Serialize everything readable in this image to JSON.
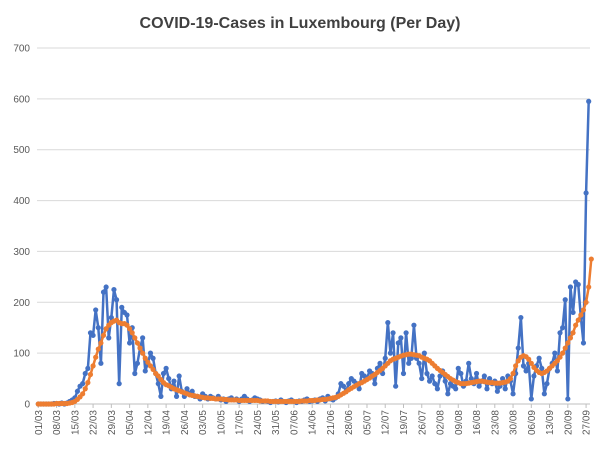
{
  "chart_data": {
    "type": "line",
    "title": "COVID-19-Cases in Luxembourg (Per Day)",
    "xlabel": "",
    "ylabel": "",
    "ylim": [
      0,
      700
    ],
    "yticks": [
      0,
      100,
      200,
      300,
      400,
      500,
      600,
      700
    ],
    "grid": true,
    "x_tick_labels": [
      "01/03",
      "08/03",
      "15/03",
      "22/03",
      "29/03",
      "05/04",
      "12/04",
      "19/04",
      "26/04",
      "03/05",
      "10/05",
      "17/05",
      "24/05",
      "31/05",
      "07/06",
      "14/06",
      "21/06",
      "28/06",
      "05/07",
      "12/07",
      "19/07",
      "26/07",
      "02/08",
      "09/08",
      "16/08",
      "23/08",
      "30/08",
      "06/09",
      "13/09",
      "20/09",
      "27/09",
      "04/10",
      "11/10",
      "18/10"
    ],
    "x_start": "01/03",
    "x_end": "23/10",
    "series": [
      {
        "color": "#4472c4",
        "marker": "circle",
        "values": [
          0,
          0,
          0,
          0,
          0,
          0,
          1,
          1,
          0,
          2,
          0,
          2,
          5,
          8,
          12,
          25,
          35,
          40,
          60,
          70,
          140,
          135,
          185,
          150,
          80,
          220,
          230,
          130,
          170,
          225,
          205,
          40,
          190,
          180,
          175,
          120,
          150,
          60,
          80,
          110,
          130,
          65,
          80,
          100,
          90,
          60,
          40,
          15,
          60,
          70,
          50,
          30,
          45,
          15,
          55,
          25,
          15,
          30,
          20,
          25,
          15,
          15,
          10,
          20,
          15,
          10,
          15,
          12,
          10,
          15,
          8,
          10,
          5,
          10,
          12,
          8,
          10,
          5,
          10,
          15,
          10,
          5,
          8,
          12,
          10,
          8,
          5,
          6,
          5,
          3,
          5,
          6,
          4,
          8,
          5,
          3,
          6,
          8,
          5,
          3,
          6,
          5,
          8,
          10,
          5,
          6,
          8,
          5,
          10,
          12,
          6,
          15,
          10,
          8,
          12,
          20,
          40,
          35,
          25,
          40,
          50,
          45,
          40,
          30,
          60,
          55,
          50,
          65,
          60,
          40,
          70,
          80,
          60,
          90,
          160,
          100,
          140,
          35,
          120,
          130,
          60,
          140,
          80,
          90,
          155,
          90,
          80,
          50,
          100,
          60,
          45,
          55,
          40,
          30,
          55,
          65,
          45,
          20,
          40,
          35,
          30,
          70,
          60,
          35,
          45,
          80,
          50,
          40,
          60,
          35,
          45,
          55,
          30,
          50,
          40,
          45,
          25,
          35,
          50,
          30,
          55,
          45,
          20,
          60,
          110,
          170,
          75,
          65,
          80,
          10,
          55,
          75,
          90,
          70,
          20,
          40,
          70,
          80,
          100,
          65,
          140,
          150,
          205,
          10,
          230,
          180,
          240,
          235,
          170,
          120,
          415,
          595
        ]
      },
      {
        "color": "#ed7d31",
        "marker": "circle",
        "values": [
          0,
          0,
          0,
          0,
          0,
          0,
          0,
          1,
          1,
          1,
          1,
          1,
          2,
          3,
          5,
          9,
          14,
          20,
          30,
          42,
          58,
          75,
          92,
          108,
          120,
          135,
          148,
          155,
          160,
          163,
          165,
          160,
          158,
          158,
          155,
          148,
          140,
          130,
          120,
          110,
          100,
          90,
          82,
          75,
          68,
          60,
          55,
          48,
          42,
          38,
          36,
          33,
          30,
          28,
          26,
          24,
          22,
          20,
          18,
          17,
          16,
          15,
          14,
          13,
          12,
          12,
          11,
          11,
          10,
          10,
          10,
          9,
          9,
          8,
          8,
          8,
          8,
          7,
          7,
          7,
          7,
          7,
          7,
          7,
          7,
          6,
          6,
          6,
          6,
          5,
          5,
          5,
          5,
          5,
          5,
          5,
          5,
          5,
          5,
          5,
          5,
          6,
          6,
          6,
          7,
          7,
          7,
          8,
          8,
          9,
          9,
          10,
          11,
          12,
          13,
          15,
          18,
          21,
          24,
          28,
          31,
          34,
          37,
          40,
          42,
          45,
          48,
          51,
          55,
          58,
          62,
          66,
          70,
          75,
          80,
          85,
          88,
          90,
          92,
          94,
          96,
          97,
          98,
          98,
          97,
          96,
          95,
          92,
          90,
          88,
          85,
          80,
          75,
          70,
          66,
          62,
          58,
          54,
          50,
          47,
          44,
          42,
          40,
          40,
          40,
          41,
          42,
          43,
          44,
          45,
          45,
          44,
          43,
          42,
          42,
          41,
          41,
          41,
          42,
          43,
          45,
          50,
          60,
          75,
          85,
          92,
          95,
          93,
          88,
          80,
          72,
          66,
          62,
          60,
          62,
          65,
          70,
          75,
          80,
          85,
          92,
          100,
          110,
          120,
          130,
          140,
          155,
          165,
          175,
          185,
          200,
          230,
          285
        ]
      }
    ]
  }
}
